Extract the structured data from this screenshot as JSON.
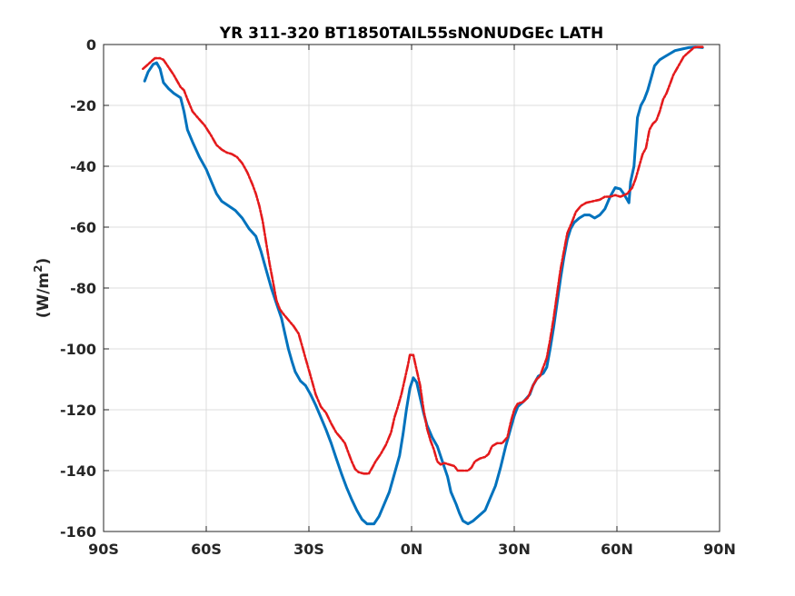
{
  "chart_data": {
    "type": "line",
    "title": "YR 311-320 BT1850TAIL55sNONUDGEc LATH",
    "xlabel": "",
    "ylabel_text": "(W/m",
    "ylabel_sup": "2",
    "ylabel_close": ")",
    "xlim": [
      -90,
      90
    ],
    "ylim": [
      -160,
      0
    ],
    "grid": true,
    "xticks": [
      -90,
      -60,
      -30,
      0,
      30,
      60,
      90
    ],
    "xtick_labels": [
      "90S",
      "60S",
      "30S",
      "0N",
      "30N",
      "60N",
      "90N"
    ],
    "yticks": [
      0,
      -20,
      -40,
      -60,
      -80,
      -100,
      -120,
      -140,
      -160
    ],
    "ytick_labels": [
      "0",
      "-20",
      "-40",
      "-60",
      "-80",
      "-100",
      "-120",
      "-140",
      "-160"
    ],
    "series": [
      {
        "color": "#0072BD",
        "style": "solid",
        "points": [
          [
            -78,
            -12
          ],
          [
            -77,
            -9
          ],
          [
            -75.5,
            -6.5
          ],
          [
            -74.5,
            -6
          ],
          [
            -73.5,
            -8
          ],
          [
            -72.5,
            -12.5
          ],
          [
            -71,
            -14.5
          ],
          [
            -69.5,
            -16
          ],
          [
            -67.5,
            -17.5
          ],
          [
            -66.5,
            -22
          ],
          [
            -65.5,
            -28
          ],
          [
            -64,
            -32
          ],
          [
            -62,
            -37
          ],
          [
            -60,
            -41
          ],
          [
            -58.5,
            -45
          ],
          [
            -57,
            -49
          ],
          [
            -55.5,
            -51.5
          ],
          [
            -53.5,
            -53
          ],
          [
            -51.5,
            -54.5
          ],
          [
            -49.5,
            -57
          ],
          [
            -47.5,
            -60.5
          ],
          [
            -45.5,
            -63
          ],
          [
            -44,
            -68
          ],
          [
            -42.5,
            -74
          ],
          [
            -41,
            -80
          ],
          [
            -39.5,
            -85
          ],
          [
            -38,
            -90
          ],
          [
            -37,
            -95
          ],
          [
            -36,
            -100
          ],
          [
            -35,
            -104
          ],
          [
            -34,
            -107.5
          ],
          [
            -32.5,
            -110.5
          ],
          [
            -31,
            -112
          ],
          [
            -29.5,
            -115
          ],
          [
            -28,
            -118.5
          ],
          [
            -26.5,
            -122.5
          ],
          [
            -25,
            -126.5
          ],
          [
            -23.5,
            -131
          ],
          [
            -22,
            -136
          ],
          [
            -20.5,
            -141
          ],
          [
            -19,
            -145.5
          ],
          [
            -17.5,
            -149.5
          ],
          [
            -16,
            -153
          ],
          [
            -14.5,
            -156
          ],
          [
            -13,
            -157.5
          ],
          [
            -11,
            -157.5
          ],
          [
            -9.5,
            -155
          ],
          [
            -8,
            -151
          ],
          [
            -6.5,
            -147
          ],
          [
            -5,
            -141
          ],
          [
            -3.5,
            -135
          ],
          [
            -2.5,
            -128
          ],
          [
            -1.5,
            -120
          ],
          [
            -0.5,
            -113
          ],
          [
            0.5,
            -109.5
          ],
          [
            1.5,
            -111
          ],
          [
            2.5,
            -116
          ],
          [
            3.5,
            -121
          ],
          [
            4.5,
            -125
          ],
          [
            6,
            -129
          ],
          [
            7.5,
            -132
          ],
          [
            9,
            -137
          ],
          [
            10.5,
            -142
          ],
          [
            11.5,
            -147
          ],
          [
            13,
            -151
          ],
          [
            14,
            -154
          ],
          [
            15,
            -156.5
          ],
          [
            16.5,
            -157.5
          ],
          [
            18,
            -156.5
          ],
          [
            19.5,
            -155
          ],
          [
            21.5,
            -153
          ],
          [
            23,
            -149
          ],
          [
            24.5,
            -145
          ],
          [
            26,
            -139
          ],
          [
            27.5,
            -132
          ],
          [
            29,
            -126
          ],
          [
            30,
            -122
          ],
          [
            31,
            -119
          ],
          [
            33,
            -117
          ],
          [
            34.5,
            -115
          ],
          [
            35.5,
            -112
          ],
          [
            37,
            -109
          ],
          [
            38.5,
            -108
          ],
          [
            39.5,
            -106
          ],
          [
            40.5,
            -100
          ],
          [
            41.5,
            -93
          ],
          [
            42.5,
            -85
          ],
          [
            43.5,
            -77
          ],
          [
            44.5,
            -70
          ],
          [
            45.5,
            -64
          ],
          [
            46.5,
            -60.5
          ],
          [
            47.5,
            -58.5
          ],
          [
            49,
            -57
          ],
          [
            50.5,
            -56
          ],
          [
            52,
            -56
          ],
          [
            53.5,
            -57
          ],
          [
            55,
            -56
          ],
          [
            56.5,
            -54
          ],
          [
            58,
            -50
          ],
          [
            59.5,
            -47
          ],
          [
            61,
            -47.5
          ],
          [
            62,
            -49
          ],
          [
            63,
            -51
          ],
          [
            63.5,
            -52
          ],
          [
            64,
            -45
          ],
          [
            65,
            -40
          ],
          [
            65.5,
            -32
          ],
          [
            66,
            -24
          ],
          [
            67,
            -20
          ],
          [
            68,
            -18
          ],
          [
            69,
            -15
          ],
          [
            70,
            -11
          ],
          [
            71,
            -7
          ],
          [
            72.5,
            -5
          ],
          [
            74,
            -4
          ],
          [
            75.5,
            -3
          ],
          [
            77,
            -2
          ],
          [
            79,
            -1.5
          ],
          [
            81,
            -1
          ],
          [
            83,
            -0.8
          ],
          [
            85,
            -1
          ]
        ]
      },
      {
        "color": "#E41A1C",
        "style": "dashdot",
        "points": [
          [
            -78.5,
            -8
          ],
          [
            -77.5,
            -7
          ],
          [
            -76,
            -5.5
          ],
          [
            -75,
            -4.5
          ],
          [
            -73.5,
            -4.5
          ],
          [
            -72.5,
            -5
          ],
          [
            -71,
            -7.5
          ],
          [
            -69.5,
            -10
          ],
          [
            -67.5,
            -14
          ],
          [
            -66.5,
            -15
          ],
          [
            -65.5,
            -18
          ],
          [
            -64,
            -22
          ],
          [
            -62.5,
            -24
          ],
          [
            -60.5,
            -26.5
          ],
          [
            -58.5,
            -30
          ],
          [
            -57,
            -33
          ],
          [
            -55.5,
            -34.5
          ],
          [
            -54,
            -35.5
          ],
          [
            -52.5,
            -36
          ],
          [
            -51,
            -37
          ],
          [
            -49.5,
            -39
          ],
          [
            -48,
            -42
          ],
          [
            -46.5,
            -46
          ],
          [
            -45.5,
            -49
          ],
          [
            -44.5,
            -53
          ],
          [
            -43.5,
            -58
          ],
          [
            -42.5,
            -65
          ],
          [
            -41.5,
            -72
          ],
          [
            -40.5,
            -78
          ],
          [
            -39.5,
            -84
          ],
          [
            -38.5,
            -87
          ],
          [
            -37.5,
            -88.5
          ],
          [
            -36,
            -90.5
          ],
          [
            -34.5,
            -92.5
          ],
          [
            -33,
            -95
          ],
          [
            -32,
            -99
          ],
          [
            -31,
            -103
          ],
          [
            -30,
            -107
          ],
          [
            -29,
            -111
          ],
          [
            -28,
            -115
          ],
          [
            -26.5,
            -119
          ],
          [
            -25,
            -121
          ],
          [
            -23.5,
            -124.5
          ],
          [
            -22,
            -127.5
          ],
          [
            -20.5,
            -129.5
          ],
          [
            -19.5,
            -131
          ],
          [
            -18.5,
            -134
          ],
          [
            -17.5,
            -137
          ],
          [
            -16.5,
            -139.5
          ],
          [
            -15.5,
            -140.5
          ],
          [
            -14,
            -141
          ],
          [
            -12.5,
            -141
          ],
          [
            -11.5,
            -139
          ],
          [
            -10.5,
            -137
          ],
          [
            -9,
            -134.5
          ],
          [
            -7.5,
            -131.5
          ],
          [
            -6,
            -127.5
          ],
          [
            -5,
            -122.5
          ],
          [
            -4,
            -119
          ],
          [
            -3,
            -115
          ],
          [
            -2,
            -110
          ],
          [
            -1,
            -105
          ],
          [
            -0.5,
            -102
          ],
          [
            0.5,
            -102
          ],
          [
            1.5,
            -107
          ],
          [
            2.5,
            -112
          ],
          [
            3.5,
            -120
          ],
          [
            4.5,
            -126
          ],
          [
            5.5,
            -130
          ],
          [
            6.5,
            -133
          ],
          [
            7.5,
            -137
          ],
          [
            8.5,
            -138
          ],
          [
            9.5,
            -137.5
          ],
          [
            11,
            -138
          ],
          [
            12.5,
            -138.5
          ],
          [
            13.5,
            -140
          ],
          [
            15,
            -140
          ],
          [
            16.5,
            -140
          ],
          [
            17.5,
            -139
          ],
          [
            18.5,
            -137
          ],
          [
            20,
            -136
          ],
          [
            21.5,
            -135.5
          ],
          [
            22.5,
            -134.5
          ],
          [
            23.5,
            -132
          ],
          [
            25,
            -131
          ],
          [
            26.5,
            -131
          ],
          [
            28,
            -129
          ],
          [
            29,
            -124
          ],
          [
            30,
            -120
          ],
          [
            31,
            -118
          ],
          [
            32.5,
            -117.5
          ],
          [
            34,
            -116
          ],
          [
            35.5,
            -112
          ],
          [
            36.5,
            -110
          ],
          [
            37.5,
            -109
          ],
          [
            38.5,
            -106
          ],
          [
            39.5,
            -103
          ],
          [
            40.5,
            -97
          ],
          [
            41.5,
            -90
          ],
          [
            42.5,
            -82
          ],
          [
            43.5,
            -74
          ],
          [
            44.5,
            -68
          ],
          [
            45.5,
            -62
          ],
          [
            47,
            -58
          ],
          [
            48,
            -55
          ],
          [
            49.5,
            -53
          ],
          [
            51,
            -52
          ],
          [
            53,
            -51.5
          ],
          [
            55,
            -51
          ],
          [
            56.5,
            -50
          ],
          [
            58,
            -50
          ],
          [
            59.5,
            -49.5
          ],
          [
            61,
            -50
          ],
          [
            63,
            -49
          ],
          [
            64.5,
            -47
          ],
          [
            65.5,
            -44
          ],
          [
            66.5,
            -40
          ],
          [
            67.5,
            -36
          ],
          [
            68.5,
            -34
          ],
          [
            69.5,
            -28
          ],
          [
            70.5,
            -26
          ],
          [
            71.5,
            -25
          ],
          [
            72.5,
            -22
          ],
          [
            73.5,
            -18
          ],
          [
            74.5,
            -16
          ],
          [
            75.5,
            -13
          ],
          [
            76.5,
            -10
          ],
          [
            77.5,
            -8
          ],
          [
            78.5,
            -6
          ],
          [
            79.5,
            -4
          ],
          [
            80.5,
            -3
          ],
          [
            81.5,
            -2
          ],
          [
            82.5,
            -1
          ],
          [
            83.5,
            -0.8
          ],
          [
            85,
            -0.8
          ]
        ]
      }
    ]
  }
}
